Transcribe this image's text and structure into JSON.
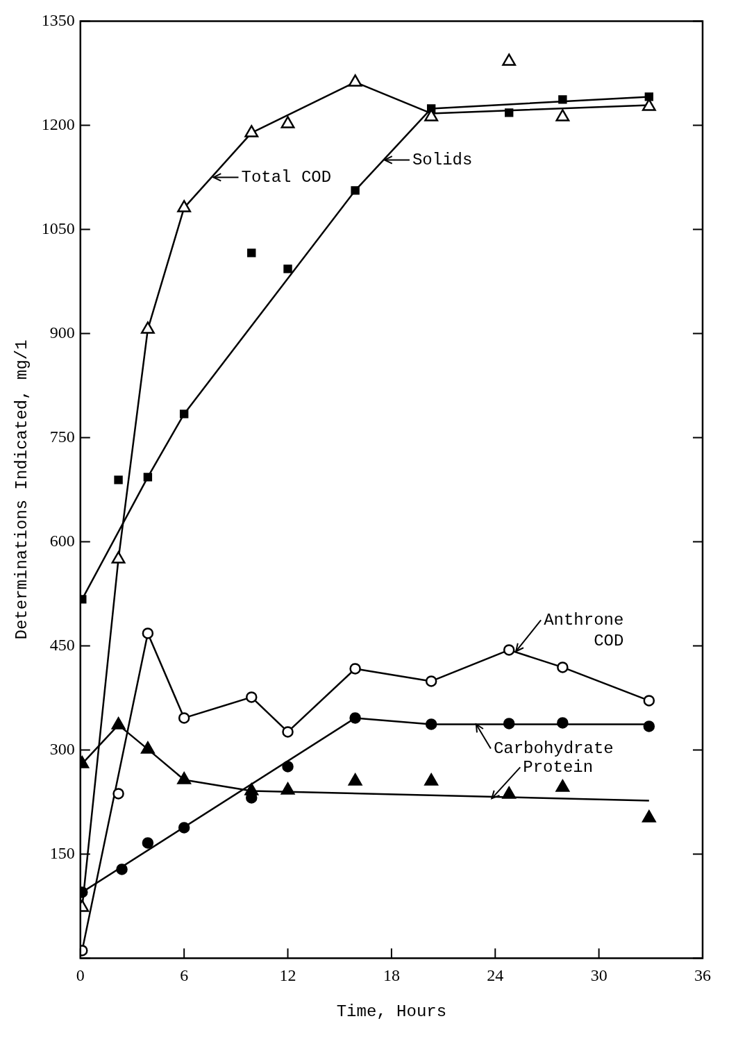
{
  "chart_data": {
    "type": "scatter",
    "xlabel": "Time, Hours",
    "ylabel": "Determinations Indicated, mg/1",
    "xlim": [
      0,
      36
    ],
    "xticks": [
      0,
      6,
      12,
      18,
      24,
      30,
      36
    ],
    "ylim": [
      0,
      1350
    ],
    "yticks": [
      {
        "value": 0,
        "label": null
      },
      150,
      300,
      450,
      600,
      750,
      900,
      1050,
      1200,
      1350
    ],
    "series": [
      {
        "type": "scatter",
        "marker": "triangle",
        "color": "#000000",
        "x": [
          0.1,
          2.2,
          3.9,
          6.0,
          9.9,
          12.0,
          15.9,
          20.3,
          24.8,
          27.9,
          32.9
        ],
        "values": [
          73,
          575,
          906,
          1081,
          1189,
          1202,
          1262,
          1212,
          1292,
          1212,
          1227
        ]
      },
      {
        "type": "line",
        "marker": "none",
        "color": "#000000",
        "x": [
          0.1,
          2.2,
          3.9,
          6.0,
          9.9,
          15.9,
          20.3,
          32.9
        ],
        "values": [
          73,
          575,
          906,
          1081,
          1189,
          1262,
          1217,
          1229
        ]
      },
      {
        "type": "scatter",
        "marker": "square",
        "color": "#000000",
        "x": [
          0.1,
          2.2,
          3.9,
          6.0,
          9.9,
          12.0,
          15.9,
          20.3,
          24.8,
          27.9,
          32.9
        ],
        "values": [
          517,
          689,
          693,
          784,
          1016,
          993,
          1106,
          1224,
          1218,
          1237,
          1241
        ]
      },
      {
        "type": "line",
        "marker": "none",
        "color": "#000000",
        "x": [
          0.1,
          3.9,
          6.0,
          15.9,
          20.3,
          32.9
        ],
        "values": [
          517,
          693,
          784,
          1106,
          1224,
          1241
        ]
      },
      {
        "type": "scatter",
        "marker": "circle",
        "color": "#000000",
        "x": [
          0.1,
          2.2,
          3.9,
          6.0,
          9.9,
          12.0,
          15.9,
          20.3,
          24.8,
          27.9,
          32.9
        ],
        "values": [
          11,
          237,
          468,
          346,
          376,
          326,
          417,
          399,
          444,
          419,
          371
        ]
      },
      {
        "type": "line",
        "marker": "none",
        "color": "#000000",
        "x": [
          0.1,
          3.9,
          6.0,
          9.9,
          12.0,
          15.9,
          20.3,
          24.8,
          27.9,
          32.9
        ],
        "values": [
          11,
          468,
          346,
          376,
          326,
          417,
          399,
          444,
          419,
          371
        ]
      },
      {
        "type": "scatter",
        "marker": "circle",
        "color": "#000000",
        "x": [
          0.1,
          2.4,
          3.9,
          6.0,
          9.9,
          12.0,
          15.9,
          20.3,
          24.8,
          27.9,
          32.9
        ],
        "values": [
          95,
          128,
          166,
          188,
          231,
          276,
          346,
          337,
          338,
          339,
          334
        ]
      },
      {
        "type": "line",
        "marker": "none",
        "color": "#000000",
        "x": [
          0.1,
          15.9,
          20.3,
          32.9
        ],
        "values": [
          95,
          346,
          337,
          337
        ]
      },
      {
        "type": "scatter",
        "marker": "triangle",
        "color": "#000000",
        "x": [
          0.1,
          2.2,
          3.9,
          6.0,
          9.9,
          12.0,
          15.9,
          20.3,
          24.8,
          27.9,
          32.9
        ],
        "values": [
          280,
          336,
          301,
          257,
          241,
          242,
          255,
          255,
          236,
          246,
          202
        ]
      },
      {
        "type": "line",
        "marker": "none",
        "color": "#000000",
        "x": [
          0.1,
          2.2,
          3.9,
          6.0,
          9.9,
          32.9
        ],
        "values": [
          280,
          336,
          301,
          257,
          241,
          227
        ]
      }
    ],
    "annotations": [
      {
        "text": "Total COD",
        "x": 7.7,
        "y": 1125
      },
      {
        "text": "Solids",
        "x": 17.6,
        "y": 1150
      },
      {
        "text": "Anthrone COD",
        "x": 25.2,
        "y": 442
      },
      {
        "text": "Carbohydrate",
        "x": 22.9,
        "y": 337
      },
      {
        "text": "Protein",
        "x": 23.8,
        "y": 230
      }
    ]
  }
}
